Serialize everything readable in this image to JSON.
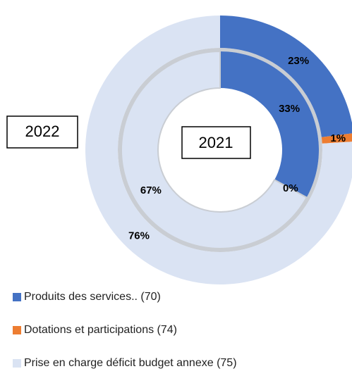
{
  "chart_data": {
    "type": "donut",
    "categories": [
      "Produits des services.. (70)",
      "Dotations et participations (74)",
      "Prise en charge déficit budget annexe (75)"
    ],
    "colors": [
      "#4472c4",
      "#ed7d31",
      "#dae3f3"
    ],
    "series": [
      {
        "name": "2022",
        "values": [
          23,
          1,
          76
        ],
        "value_labels": [
          "23%",
          "1%",
          "76%"
        ]
      },
      {
        "name": "2021",
        "values": [
          33,
          0,
          67
        ],
        "value_labels": [
          "33%",
          "0%",
          "67%"
        ]
      }
    ]
  }
}
